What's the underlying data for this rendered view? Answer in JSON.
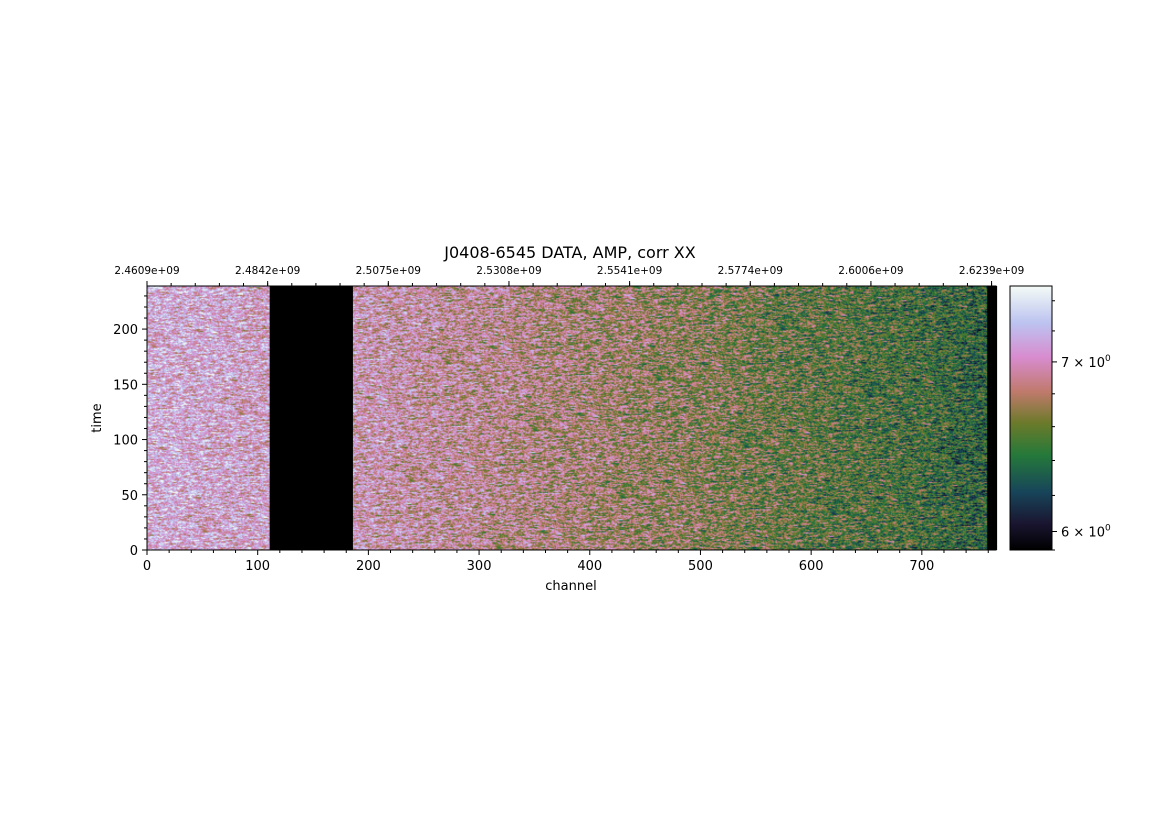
{
  "chart_data": {
    "type": "heatmap",
    "title": "J0408-6545 DATA, AMP, corr XX",
    "xlabel": "channel",
    "ylabel": "time",
    "xlim": [
      0,
      767
    ],
    "ylim": [
      0,
      239
    ],
    "x_ticks": [
      "0",
      "100",
      "200",
      "300",
      "400",
      "500",
      "600",
      "700"
    ],
    "y_ticks": [
      "0",
      "50",
      "100",
      "150",
      "200"
    ],
    "top_axis_ticks": [
      "2.4609e+09",
      "2.4842e+09",
      "2.5075e+09",
      "2.5308e+09",
      "2.5541e+09",
      "2.5774e+09",
      "2.6006e+09",
      "2.6239e+09"
    ],
    "top_axis_channels": [
      0,
      109,
      218,
      327,
      436,
      545,
      654,
      763
    ],
    "flagged_channel_ranges": [
      [
        111,
        185
      ],
      [
        760,
        767
      ]
    ],
    "colorbar": {
      "colormap": "cubehelix",
      "scale": "log",
      "ticks": [
        {
          "base": "6",
          "exponent": "0",
          "value": 6
        },
        {
          "base": "7",
          "exponent": "0",
          "value": 7
        }
      ],
      "times": "×",
      "range": [
        5.9,
        7.5
      ]
    },
    "amplitude_trend": {
      "channels": [
        0,
        100,
        200,
        300,
        400,
        500,
        600,
        700,
        760
      ],
      "mean_amplitude": [
        7.15,
        7.08,
        7.0,
        6.9,
        6.8,
        6.7,
        6.58,
        6.48,
        6.38
      ]
    }
  }
}
